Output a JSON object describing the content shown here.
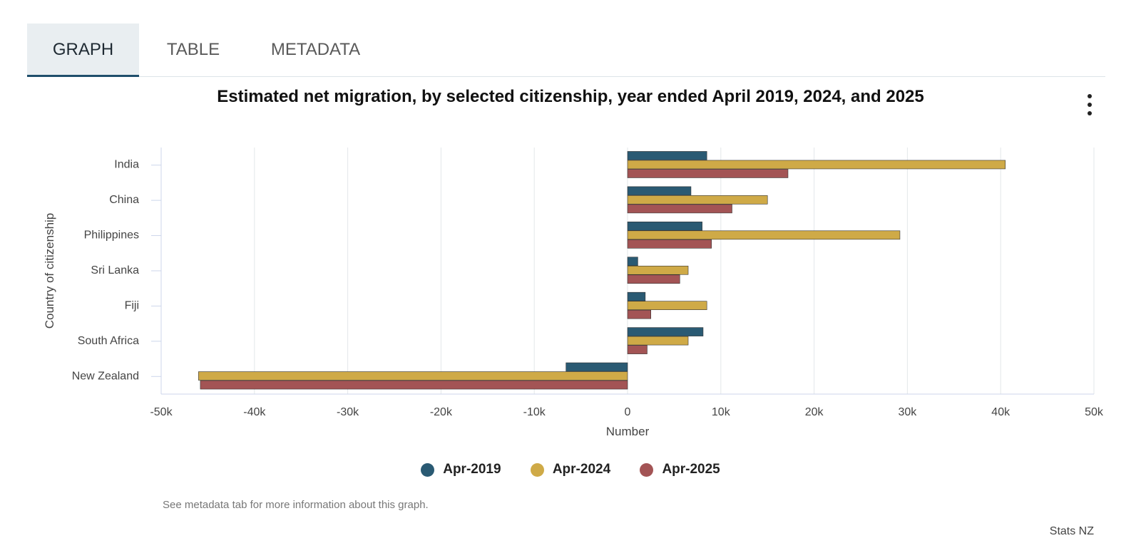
{
  "tabs": [
    {
      "label": "GRAPH"
    },
    {
      "label": "TABLE"
    },
    {
      "label": "METADATA"
    }
  ],
  "chart_data": {
    "type": "bar",
    "orientation": "horizontal",
    "title": "Estimated net migration, by selected citizenship, year ended April 2019, 2024, and 2025",
    "xlabel": "Number",
    "ylabel": "Country of citizenship",
    "xlim": [
      -50000,
      50000
    ],
    "xticks": [
      -50000,
      -40000,
      -30000,
      -20000,
      -10000,
      0,
      10000,
      20000,
      30000,
      40000,
      50000
    ],
    "xtick_labels": [
      "-50k",
      "-40k",
      "-30k",
      "-20k",
      "-10k",
      "0",
      "10k",
      "20k",
      "30k",
      "40k",
      "50k"
    ],
    "grid": true,
    "legend_position": "bottom",
    "categories": [
      "India",
      "China",
      "Philippines",
      "Sri Lanka",
      "Fiji",
      "South Africa",
      "New Zealand"
    ],
    "series": [
      {
        "name": "Apr-2019",
        "color": "#2a5a73",
        "values": [
          8500,
          6800,
          8000,
          1100,
          1900,
          8100,
          -6600
        ]
      },
      {
        "name": "Apr-2024",
        "color": "#cfaa47",
        "values": [
          40500,
          15000,
          29200,
          6500,
          8500,
          6500,
          -46000
        ]
      },
      {
        "name": "Apr-2025",
        "color": "#a35455",
        "values": [
          17200,
          11200,
          9000,
          5600,
          2500,
          2100,
          -45800
        ]
      }
    ]
  },
  "note": "See metadata tab for more information about this graph.",
  "credit": "Stats NZ"
}
